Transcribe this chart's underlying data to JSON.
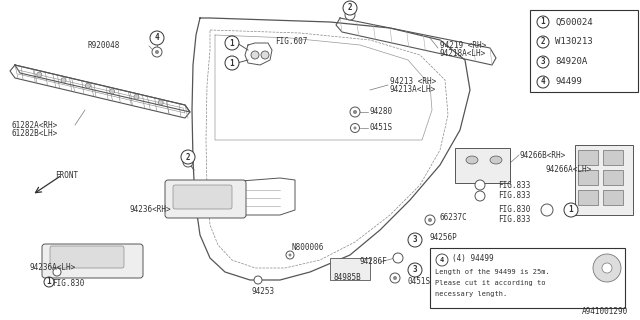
{
  "bg_color": "#ffffff",
  "line_color": "#555555",
  "text_color": "#333333",
  "legend_items": [
    {
      "num": "1",
      "code": "Q500024"
    },
    {
      "num": "2",
      "code": "W130213"
    },
    {
      "num": "3",
      "code": "84920A"
    },
    {
      "num": "4",
      "code": "94499"
    }
  ],
  "footer_code": "A941001290",
  "note_text": [
    "(4) 94499",
    "Length of the 94499 is 25m.",
    "Please cut it according to",
    "necessary length."
  ]
}
